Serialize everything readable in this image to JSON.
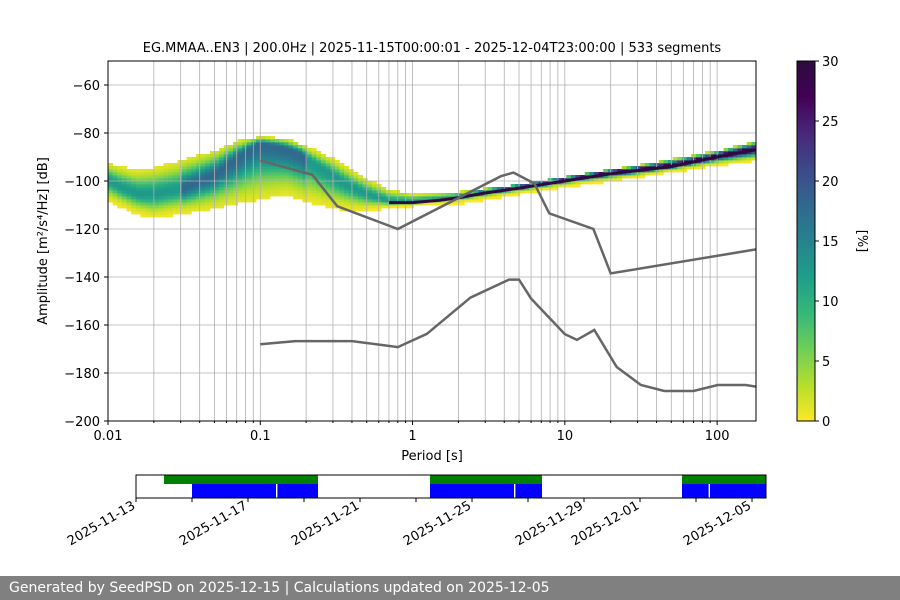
{
  "chart_data": [
    {
      "type": "heatmap",
      "title": "EG.MMAA..EN3 | 200.0Hz | 2025-11-15T00:00:01 - 2025-12-04T23:00:00 | 533 segments",
      "xlabel": "Period [s]",
      "ylabel": "Amplitude [m²/s⁴/Hz] [dB]",
      "xscale": "log",
      "xlim": [
        0.01,
        180
      ],
      "ylim": [
        -200,
        -50
      ],
      "grid": true,
      "x_tick_labels": [
        "0.01",
        "0.1",
        "1",
        "10",
        "100"
      ],
      "y_ticks": [
        -200,
        -180,
        -160,
        -140,
        -120,
        -100,
        -80,
        -60
      ],
      "mode_curve": {
        "name": "PSD mode",
        "points": [
          [
            0.01,
            -100
          ],
          [
            0.012,
            -103
          ],
          [
            0.016,
            -106
          ],
          [
            0.02,
            -106
          ],
          [
            0.03,
            -104
          ],
          [
            0.05,
            -98
          ],
          [
            0.07,
            -91
          ],
          [
            0.09,
            -86
          ],
          [
            0.1,
            -85
          ],
          [
            0.13,
            -86
          ],
          [
            0.18,
            -89
          ],
          [
            0.25,
            -95
          ],
          [
            0.35,
            -101
          ],
          [
            0.5,
            -106
          ],
          [
            0.7,
            -109
          ],
          [
            1,
            -109
          ],
          [
            1.5,
            -108
          ],
          [
            2,
            -107
          ],
          [
            3,
            -105
          ],
          [
            5,
            -103
          ],
          [
            10,
            -100
          ],
          [
            20,
            -97
          ],
          [
            50,
            -94
          ],
          [
            100,
            -90
          ],
          [
            180,
            -87
          ]
        ]
      },
      "spread": {
        "name": "PSD spread",
        "points": [
          [
            0.01,
            -93,
            -108
          ],
          [
            0.015,
            -96,
            -113
          ],
          [
            0.02,
            -95,
            -115
          ],
          [
            0.03,
            -92,
            -113
          ],
          [
            0.05,
            -88,
            -111
          ],
          [
            0.07,
            -84,
            -109
          ],
          [
            0.1,
            -82,
            -107
          ],
          [
            0.15,
            -83,
            -105
          ],
          [
            0.2,
            -86,
            -108
          ],
          [
            0.3,
            -91,
            -111
          ],
          [
            0.45,
            -98,
            -112
          ],
          [
            0.7,
            -104,
            -111
          ],
          [
            1,
            -106,
            -110
          ],
          [
            2,
            -105,
            -109
          ],
          [
            5,
            -102,
            -105
          ],
          [
            10,
            -99,
            -102
          ],
          [
            30,
            -94,
            -98
          ],
          [
            100,
            -88,
            -93
          ],
          [
            180,
            -84,
            -91
          ]
        ]
      },
      "reference_models": [
        {
          "name": "high noise model",
          "points": [
            [
              0.1,
              -91.5
            ],
            [
              0.22,
              -97.4
            ],
            [
              0.32,
              -110.5
            ],
            [
              0.8,
              -120
            ],
            [
              3.8,
              -98
            ],
            [
              4.6,
              -96.5
            ],
            [
              6.3,
              -101
            ],
            [
              7.9,
              -113.5
            ],
            [
              15.4,
              -120
            ],
            [
              20,
              -138.5
            ],
            [
              180,
              -128.5
            ]
          ]
        },
        {
          "name": "low noise model",
          "points": [
            [
              0.1,
              -168
            ],
            [
              0.17,
              -166.7
            ],
            [
              0.4,
              -166.7
            ],
            [
              0.8,
              -169.2
            ],
            [
              1.24,
              -163.7
            ],
            [
              2.4,
              -148.6
            ],
            [
              4.3,
              -141.1
            ],
            [
              5,
              -141.1
            ],
            [
              6,
              -149
            ],
            [
              10,
              -163.8
            ],
            [
              12,
              -166.2
            ],
            [
              15.6,
              -162.1
            ],
            [
              21.9,
              -177.5
            ],
            [
              31.6,
              -185
            ],
            [
              45,
              -187.5
            ],
            [
              70,
              -187.5
            ],
            [
              101,
              -185
            ],
            [
              154,
              -185
            ],
            [
              180,
              -185.7
            ]
          ]
        }
      ],
      "colorbar": {
        "label": "[%]",
        "range": [
          0,
          30
        ],
        "ticks": [
          0,
          5,
          10,
          15,
          20,
          25,
          30
        ],
        "colors": [
          "#fde725",
          "#b5de2b",
          "#6ece58",
          "#35b779",
          "#1f9e89",
          "#26828e",
          "#31688e",
          "#3e4989",
          "#482878",
          "#440154",
          "#2d0b40"
        ]
      },
      "curve_color": "#666666"
    },
    {
      "type": "timeline",
      "date_labels": [
        "2025-11-13",
        "2025-11-17",
        "2025-11-21",
        "2025-11-25",
        "2025-11-29",
        "2025-12-01",
        "2025-12-05"
      ],
      "date_ticks": [
        "2025-11-13",
        "2025-11-15",
        "2025-11-17",
        "2025-11-19",
        "2025-11-21",
        "2025-11-23",
        "2025-11-25",
        "2025-11-27",
        "2025-11-29",
        "2025-12-01",
        "2025-12-03",
        "2025-12-05"
      ],
      "range": [
        "2025-11-13",
        "2025-12-05.5"
      ],
      "green_spans": [
        [
          "2025-11-14",
          "2025-11-19.5"
        ],
        [
          "2025-11-23.5",
          "2025-11-27.5"
        ],
        [
          "2025-12-02.5",
          "2025-12-05.5"
        ]
      ],
      "blue_spans": [
        [
          "2025-11-15",
          "2025-11-18"
        ],
        [
          "2025-11-18.05",
          "2025-11-19.5"
        ],
        [
          "2025-11-23.5",
          "2025-11-26.5"
        ],
        [
          "2025-11-26.55",
          "2025-11-27.5"
        ],
        [
          "2025-12-02.5",
          "2025-12-03.45"
        ],
        [
          "2025-12-03.5",
          "2025-12-05.5"
        ]
      ],
      "green_color": "#008000",
      "blue_color": "#0000ff"
    }
  ],
  "footer": {
    "text": "Generated by SeedPSD on 2025-12-15 | Calculations updated on 2025-12-05"
  }
}
